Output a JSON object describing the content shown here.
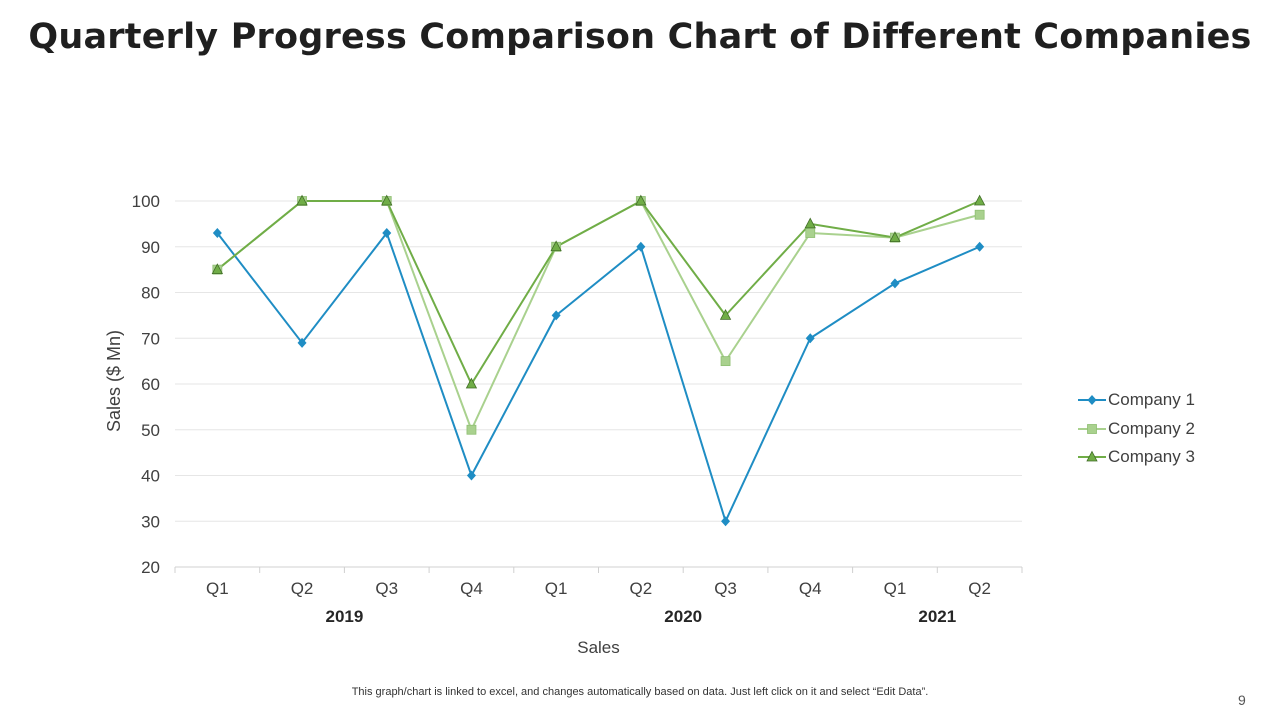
{
  "slide": {
    "title": "Quarterly Progress Comparison Chart of Different Companies",
    "footnote": "This graph/chart is linked to excel, and changes automatically based on data. Just left click on it and select “Edit Data”.",
    "page_number": "9"
  },
  "chart_data": {
    "type": "line",
    "categories": [
      "Q1",
      "Q2",
      "Q3",
      "Q4",
      "Q1",
      "Q2",
      "Q3",
      "Q4",
      "Q1",
      "Q2"
    ],
    "category_groups": [
      {
        "label": "2019",
        "span": [
          0,
          3
        ]
      },
      {
        "label": "2020",
        "span": [
          4,
          7
        ]
      },
      {
        "label": "2021",
        "span": [
          8,
          9
        ]
      }
    ],
    "series": [
      {
        "name": "Company 1",
        "values": [
          93,
          69,
          93,
          40,
          75,
          90,
          30,
          70,
          82,
          90
        ],
        "color": "#1f8dc4",
        "marker": "diamond"
      },
      {
        "name": "Company 2",
        "values": [
          85,
          100,
          100,
          50,
          90,
          100,
          65,
          93,
          92,
          97
        ],
        "color": "#a9d18e",
        "marker": "square"
      },
      {
        "name": "Company 3",
        "values": [
          85,
          100,
          100,
          60,
          90,
          100,
          75,
          95,
          92,
          100
        ],
        "color": "#70ad47",
        "marker": "triangle"
      }
    ],
    "xlabel": "Sales",
    "ylabel": "Sales ($ Mn)",
    "ylim": [
      20,
      100
    ],
    "yticks": [
      20,
      30,
      40,
      50,
      60,
      70,
      80,
      90,
      100
    ],
    "grid": true,
    "legend_position": "right"
  }
}
